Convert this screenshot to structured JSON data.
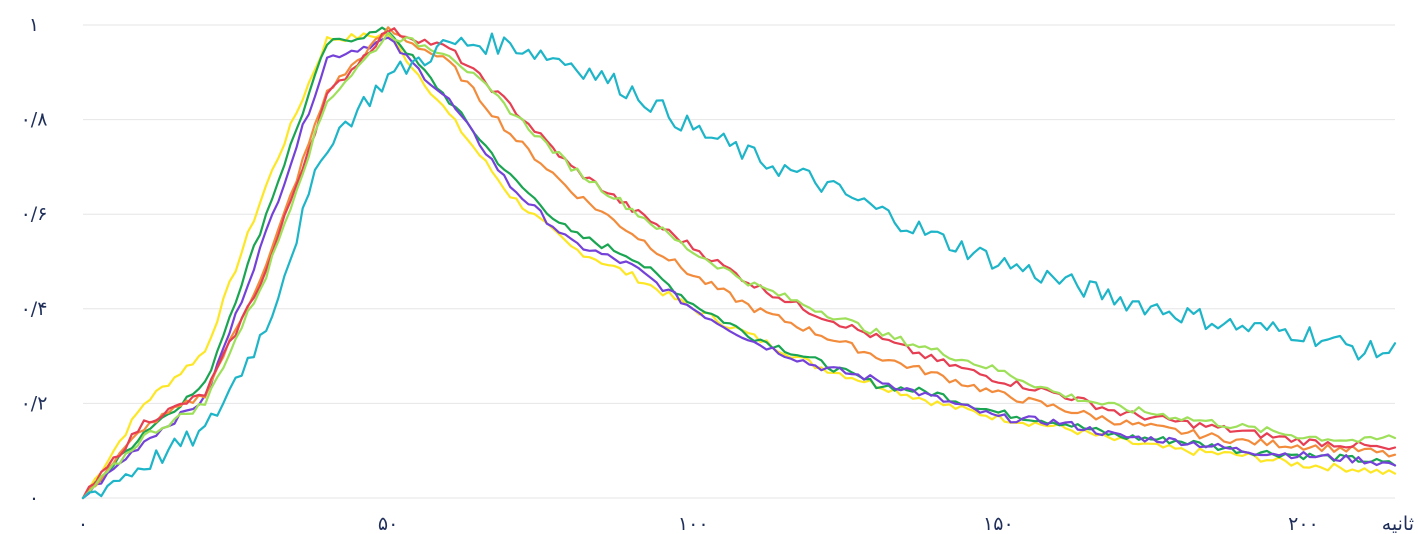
{
  "chart_data": {
    "type": "line",
    "title": "",
    "xlabel": "ثانیه",
    "ylabel": "",
    "xlim": [
      0,
      215
    ],
    "ylim": [
      0,
      1
    ],
    "x_ticks": [
      0,
      50,
      100,
      150,
      200
    ],
    "x_tick_labels": [
      "۰",
      "۵۰",
      "۱۰۰",
      "۱۵۰",
      "۲۰۰"
    ],
    "y_ticks": [
      0,
      0.2,
      0.4,
      0.6,
      0.8,
      1
    ],
    "y_tick_labels": [
      "۰",
      "۰/۲",
      "۰/۴",
      "۰/۶",
      "۰/۸",
      "۱"
    ],
    "grid": "horizontal",
    "legend": "none",
    "x": [
      0,
      10,
      20,
      30,
      40,
      50,
      60,
      70,
      80,
      90,
      100,
      110,
      120,
      130,
      140,
      150,
      160,
      170,
      180,
      190,
      200,
      210,
      215
    ],
    "series": [
      {
        "color": "#fde725",
        "values": [
          0,
          0.2,
          0.31,
          0.66,
          0.97,
          0.98,
          0.81,
          0.64,
          0.53,
          0.47,
          0.4,
          0.34,
          0.28,
          0.24,
          0.2,
          0.17,
          0.15,
          0.12,
          0.1,
          0.09,
          0.07,
          0.06,
          0.05
        ]
      },
      {
        "color": "#1aa552",
        "values": [
          0,
          0.14,
          0.24,
          0.6,
          0.96,
          0.99,
          0.84,
          0.68,
          0.56,
          0.51,
          0.41,
          0.34,
          0.29,
          0.24,
          0.22,
          0.18,
          0.16,
          0.13,
          0.12,
          0.1,
          0.09,
          0.08,
          0.07
        ]
      },
      {
        "color": "#7442d8",
        "values": [
          0,
          0.12,
          0.21,
          0.56,
          0.93,
          0.97,
          0.84,
          0.66,
          0.54,
          0.49,
          0.4,
          0.33,
          0.28,
          0.25,
          0.21,
          0.17,
          0.16,
          0.13,
          0.12,
          0.1,
          0.09,
          0.08,
          0.07
        ]
      },
      {
        "color": "#f28c3c",
        "values": [
          0,
          0.15,
          0.22,
          0.49,
          0.86,
          0.99,
          0.92,
          0.77,
          0.65,
          0.56,
          0.47,
          0.4,
          0.35,
          0.3,
          0.26,
          0.22,
          0.19,
          0.16,
          0.14,
          0.12,
          0.11,
          0.1,
          0.09
        ]
      },
      {
        "color": "#e63e52",
        "values": [
          0,
          0.16,
          0.22,
          0.48,
          0.85,
          0.99,
          0.95,
          0.83,
          0.7,
          0.61,
          0.53,
          0.45,
          0.39,
          0.34,
          0.29,
          0.25,
          0.22,
          0.18,
          0.16,
          0.14,
          0.12,
          0.11,
          0.1
        ]
      },
      {
        "color": "#9ee05a",
        "values": [
          0,
          0.13,
          0.2,
          0.47,
          0.84,
          0.98,
          0.94,
          0.82,
          0.7,
          0.61,
          0.52,
          0.45,
          0.4,
          0.35,
          0.31,
          0.27,
          0.22,
          0.19,
          0.17,
          0.15,
          0.13,
          0.12,
          0.13
        ]
      },
      {
        "color": "#1eb5c8",
        "values": [
          0,
          0.07,
          0.14,
          0.36,
          0.75,
          0.89,
          0.96,
          0.96,
          0.92,
          0.86,
          0.78,
          0.72,
          0.67,
          0.61,
          0.55,
          0.5,
          0.46,
          0.42,
          0.39,
          0.36,
          0.35,
          0.31,
          0.31
        ]
      }
    ]
  }
}
